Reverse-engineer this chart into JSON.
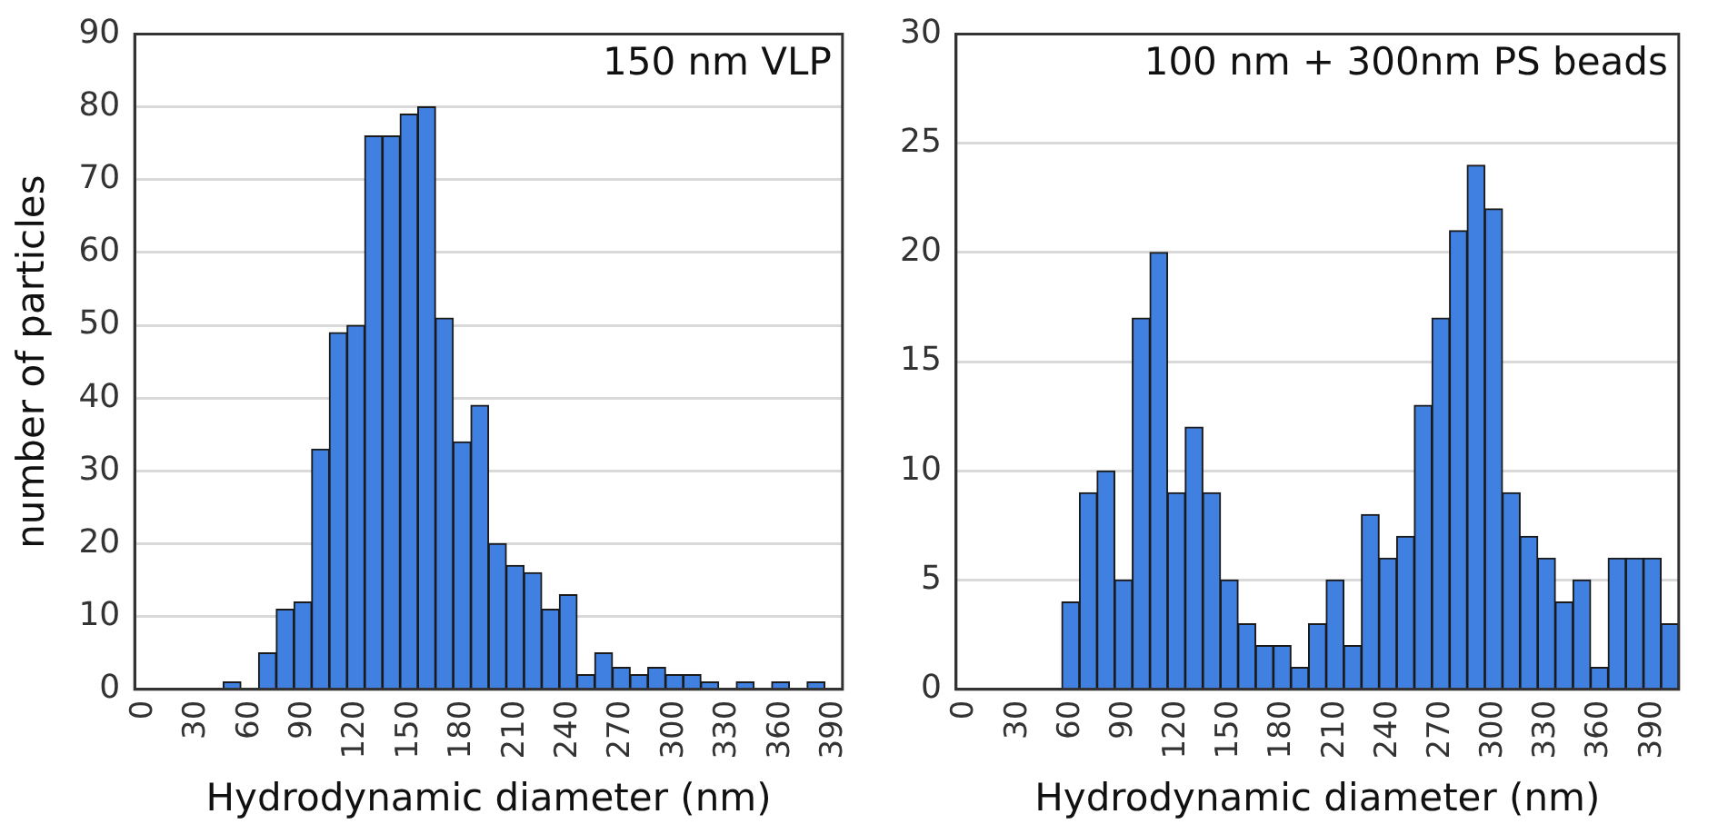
{
  "chart_data": [
    {
      "type": "bar",
      "title": "150 nm VLP",
      "xlabel": "Hydrodynamic diameter (nm)",
      "ylabel": "number of particles",
      "color": "#4080e0",
      "grid": "y",
      "ylim": [
        0,
        90
      ],
      "yticks": [
        0,
        10,
        20,
        30,
        40,
        50,
        60,
        70,
        80,
        90
      ],
      "categories": [
        "0",
        null,
        null,
        "30",
        null,
        null,
        "60",
        null,
        null,
        "90",
        null,
        null,
        "120",
        null,
        null,
        "150",
        null,
        null,
        "180",
        null,
        null,
        "210",
        null,
        null,
        "240",
        null,
        null,
        "270",
        null,
        null,
        "300",
        null,
        null,
        "330",
        null,
        null,
        "360",
        null,
        null,
        "390"
      ],
      "values": [
        0,
        0,
        0,
        0,
        0,
        1,
        0,
        5,
        11,
        12,
        33,
        49,
        50,
        76,
        76,
        79,
        80,
        51,
        34,
        39,
        20,
        17,
        16,
        11,
        13,
        2,
        5,
        3,
        2,
        3,
        2,
        2,
        1,
        0,
        1,
        0,
        1,
        0,
        1,
        0
      ]
    },
    {
      "type": "bar",
      "title": "100 nm + 300nm PS beads",
      "xlabel": "Hydrodynamic diameter (nm)",
      "color": "#4080e0",
      "grid": "y",
      "ylim": [
        0,
        30
      ],
      "yticks": [
        0,
        5,
        10,
        15,
        20,
        25,
        30
      ],
      "categories": [
        "0",
        null,
        null,
        "30",
        null,
        null,
        "60",
        null,
        null,
        "90",
        null,
        null,
        "120",
        null,
        null,
        "150",
        null,
        null,
        "180",
        null,
        null,
        "210",
        null,
        null,
        "240",
        null,
        null,
        "270",
        null,
        null,
        "300",
        null,
        null,
        "330",
        null,
        null,
        "360",
        null,
        null,
        "390",
        null
      ],
      "values": [
        0,
        0,
        0,
        0,
        0,
        0,
        4,
        9,
        10,
        5,
        17,
        20,
        9,
        12,
        9,
        5,
        3,
        2,
        2,
        1,
        3,
        5,
        2,
        8,
        6,
        7,
        13,
        17,
        21,
        24,
        22,
        9,
        7,
        6,
        4,
        5,
        1,
        6,
        6,
        6,
        3
      ]
    }
  ]
}
